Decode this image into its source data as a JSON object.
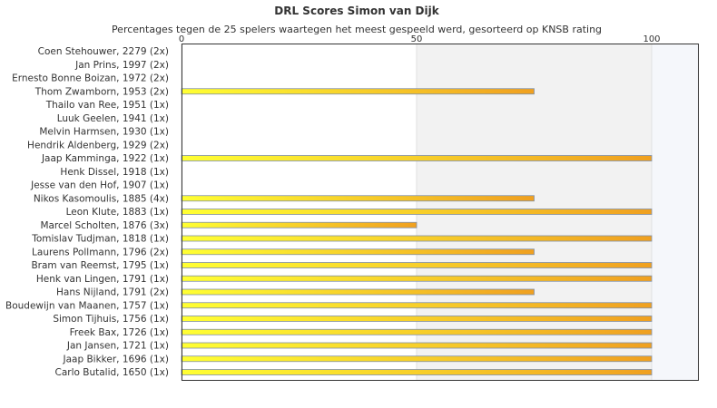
{
  "chart_data": {
    "type": "bar",
    "orientation": "horizontal",
    "title": "DRL Scores Simon van Dijk",
    "subtitle": "Percentages tegen de 25 spelers waartegen het meest gespeeld werd, gesorteerd op KNSB rating",
    "x_ticks": [
      "0",
      "50",
      "100"
    ],
    "xlim": [
      0,
      110
    ],
    "grid": true,
    "categories": [
      "Coen Stehouwer, 2279 (2x)",
      "Jan Prins, 1997 (2x)",
      "Ernesto Bonne Boizan, 1972 (2x)",
      "Thom Zwamborn, 1953 (2x)",
      "Thailo van Ree, 1951 (1x)",
      "Luuk Geelen, 1941 (1x)",
      "Melvin Harmsen, 1930 (1x)",
      "Hendrik Aldenberg, 1929 (2x)",
      "Jaap Kamminga, 1922 (1x)",
      "Henk Dissel, 1918 (1x)",
      "Jesse van den Hof, 1907 (1x)",
      "Nikos Kasomoulis, 1885 (4x)",
      "Leon Klute, 1883 (1x)",
      "Marcel Scholten, 1876 (3x)",
      "Tomislav Tudjman, 1818 (1x)",
      "Laurens Pollmann, 1796 (2x)",
      "Bram van Reemst, 1795 (1x)",
      "Henk van Lingen, 1791 (1x)",
      "Hans Nijland, 1791 (2x)",
      "Boudewijn van Maanen, 1757 (1x)",
      "Simon Tijhuis, 1756 (1x)",
      "Freek Bax, 1726 (1x)",
      "Jan Jansen, 1721 (1x)",
      "Jaap Bikker, 1696 (1x)",
      "Carlo Butalid, 1650 (1x)"
    ],
    "values": [
      0,
      0,
      0,
      75,
      0,
      0,
      0,
      0,
      100,
      0,
      0,
      75,
      100,
      50,
      100,
      75,
      100,
      100,
      75,
      100,
      100,
      100,
      100,
      100,
      100
    ],
    "colors": {
      "bar_start": "#ffff33",
      "bar_end": "#f0a020",
      "bar_border": "#7f8fa8",
      "grid": "#e0e0e0",
      "band": "#f2f2f2",
      "right_band": "#f5f7fb",
      "axis": "#333333"
    }
  }
}
